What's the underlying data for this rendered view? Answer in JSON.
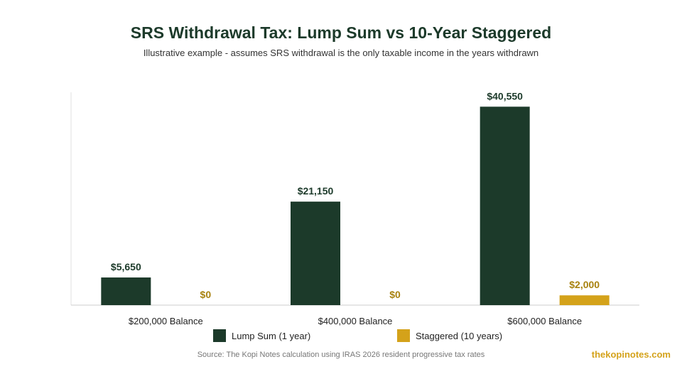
{
  "title": "SRS Withdrawal Tax: Lump Sum vs 10-Year Staggered",
  "subtitle": "Illustrative example - assumes SRS withdrawal is the only taxable income in the years withdrawn",
  "source": "Source: The Kopi Notes calculation using IRAS 2026 resident progressive tax rates",
  "brand": "thekopinotes.com",
  "colors": {
    "lump": "#1c3a2a",
    "staggered": "#d4a21a",
    "lump_label": "#1c3a2a",
    "staggered_label": "#a8820f"
  },
  "chart_data": {
    "type": "bar",
    "categories": [
      "$200,000 Balance",
      "$400,000 Balance",
      "$600,000 Balance"
    ],
    "series": [
      {
        "name": "Lump Sum (1 year)",
        "values": [
          5650,
          21150,
          40550
        ],
        "labels": [
          "$5,650",
          "$21,150",
          "$40,550"
        ]
      },
      {
        "name": "Staggered (10 years)",
        "values": [
          0,
          0,
          2000
        ],
        "labels": [
          "$0",
          "$0",
          "$2,000"
        ]
      }
    ],
    "ylim": [
      0,
      43500
    ],
    "grid": false,
    "legend_position": "bottom"
  }
}
